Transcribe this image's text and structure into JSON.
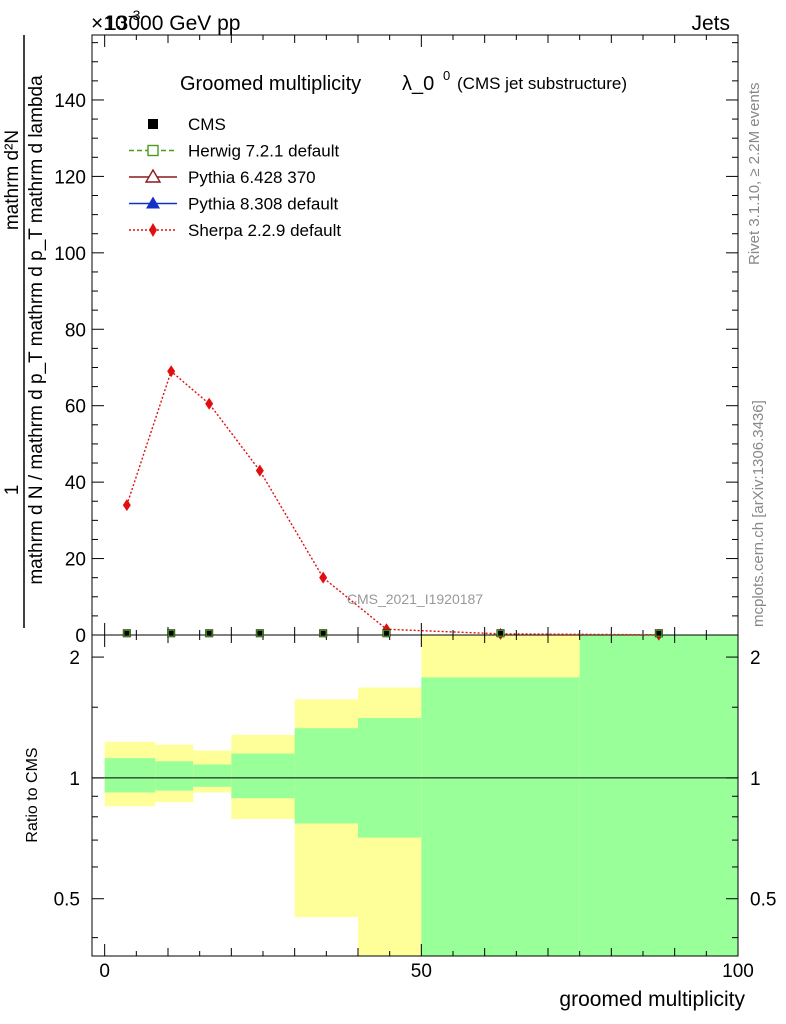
{
  "header": {
    "energy": "13000 GeV pp",
    "category": "Jets",
    "exponent": "×10",
    "exponent_power": "-3"
  },
  "side_labels": {
    "rivet": "Rivet 3.1.10, ≥ 2.2M events",
    "mcplots": "mcplots.cern.ch [arXiv:1306.3436]"
  },
  "chart_data": [
    {
      "type": "line",
      "title": "Groomed multiplicity",
      "title_symbol": "λ_0",
      "title_sup": "0",
      "subtitle": "(CMS jet substructure)",
      "ylabel_numerator": "mathrm d²N",
      "ylabel_denominator": "mathrm d N / mathrm d p_T mathrm d p_T mathrm d lambda",
      "ylabel_prefix": "1",
      "watermark": "CMS_2021_I1920187",
      "xlim": [
        -2,
        100
      ],
      "ylim": [
        0,
        157
      ],
      "yticks": [
        0,
        20,
        40,
        60,
        80,
        100,
        120,
        140
      ],
      "legend_position": "top-left",
      "legend": [
        {
          "name": "CMS",
          "color": "#000000",
          "marker": "square-filled",
          "line": "none"
        },
        {
          "name": "Herwig 7.2.1 default",
          "color": "#4c9a1e",
          "marker": "square-open",
          "line": "dashed"
        },
        {
          "name": "Pythia 6.428 370",
          "color": "#8b1a1a",
          "marker": "triangle-open",
          "line": "solid"
        },
        {
          "name": "Pythia 8.308 default",
          "color": "#1030c8",
          "marker": "triangle-filled",
          "line": "solid"
        },
        {
          "name": "Sherpa 2.2.9 default",
          "color": "#e01010",
          "marker": "diamond",
          "line": "dotted"
        }
      ],
      "cms_points": [
        {
          "x": 3.5,
          "y": 0.2
        },
        {
          "x": 10.5,
          "y": 0.2
        },
        {
          "x": 16.5,
          "y": 0.2
        },
        {
          "x": 24.5,
          "y": 0.2
        },
        {
          "x": 34.5,
          "y": 0.2
        },
        {
          "x": 44.5,
          "y": 0.2
        },
        {
          "x": 62.5,
          "y": 0.2
        },
        {
          "x": 87.5,
          "y": 0.2
        }
      ],
      "sherpa_points": [
        {
          "x": 3.5,
          "y": 34
        },
        {
          "x": 10.5,
          "y": 69
        },
        {
          "x": 16.5,
          "y": 60.5
        },
        {
          "x": 24.5,
          "y": 43
        },
        {
          "x": 34.5,
          "y": 15
        },
        {
          "x": 44.5,
          "y": 1.5
        },
        {
          "x": 62.5,
          "y": 0.3
        },
        {
          "x": 87.5,
          "y": 0.05
        }
      ]
    },
    {
      "type": "area",
      "ylabel": "Ratio to CMS",
      "xlabel": "groomed multiplicity",
      "xlim": [
        -2,
        100
      ],
      "ylim": [
        0.36,
        2.27
      ],
      "scale": "log",
      "yticks": [
        0.5,
        1,
        2
      ],
      "xticks": [
        0,
        50,
        100
      ],
      "reference_line": 1,
      "bands": [
        {
          "x0": 0,
          "x1": 8,
          "yellow": [
            0.85,
            1.23
          ],
          "green": [
            0.92,
            1.12
          ]
        },
        {
          "x0": 8,
          "x1": 14,
          "yellow": [
            0.87,
            1.21
          ],
          "green": [
            0.93,
            1.1
          ]
        },
        {
          "x0": 14,
          "x1": 20,
          "yellow": [
            0.92,
            1.17
          ],
          "green": [
            0.95,
            1.08
          ]
        },
        {
          "x0": 20,
          "x1": 30,
          "yellow": [
            0.79,
            1.28
          ],
          "green": [
            0.89,
            1.15
          ]
        },
        {
          "x0": 30,
          "x1": 40,
          "yellow": [
            0.45,
            1.57
          ],
          "green": [
            0.77,
            1.33
          ]
        },
        {
          "x0": 40,
          "x1": 50,
          "yellow": [
            0.36,
            1.68
          ],
          "green": [
            0.71,
            1.41
          ]
        },
        {
          "x0": 50,
          "x1": 75,
          "yellow": [
            0.36,
            2.27
          ],
          "green": [
            0.36,
            1.78
          ]
        },
        {
          "x0": 75,
          "x1": 100,
          "yellow": [
            0.36,
            2.27
          ],
          "green": [
            0.36,
            2.27
          ]
        }
      ]
    }
  ]
}
